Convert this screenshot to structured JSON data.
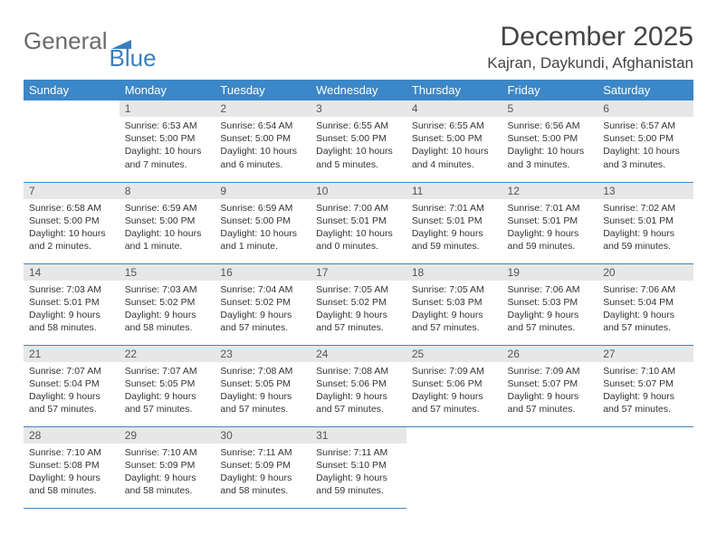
{
  "logo": {
    "text1": "General",
    "text2": "Blue"
  },
  "title": "December 2025",
  "location": "Kajran, Daykundi, Afghanistan",
  "colors": {
    "header_bg": "#3b87c8",
    "header_text": "#ffffff",
    "daynum_bg": "#e7e7e7",
    "row_border": "#3b87c8",
    "logo_gray": "#6b6b6b",
    "logo_blue": "#3b7fbf"
  },
  "weekdays": [
    "Sunday",
    "Monday",
    "Tuesday",
    "Wednesday",
    "Thursday",
    "Friday",
    "Saturday"
  ],
  "weeks": [
    [
      {
        "blank": true
      },
      {
        "n": "1",
        "sunrise": "6:53 AM",
        "sunset": "5:00 PM",
        "daylight": "10 hours and 7 minutes."
      },
      {
        "n": "2",
        "sunrise": "6:54 AM",
        "sunset": "5:00 PM",
        "daylight": "10 hours and 6 minutes."
      },
      {
        "n": "3",
        "sunrise": "6:55 AM",
        "sunset": "5:00 PM",
        "daylight": "10 hours and 5 minutes."
      },
      {
        "n": "4",
        "sunrise": "6:55 AM",
        "sunset": "5:00 PM",
        "daylight": "10 hours and 4 minutes."
      },
      {
        "n": "5",
        "sunrise": "6:56 AM",
        "sunset": "5:00 PM",
        "daylight": "10 hours and 3 minutes."
      },
      {
        "n": "6",
        "sunrise": "6:57 AM",
        "sunset": "5:00 PM",
        "daylight": "10 hours and 3 minutes."
      }
    ],
    [
      {
        "n": "7",
        "sunrise": "6:58 AM",
        "sunset": "5:00 PM",
        "daylight": "10 hours and 2 minutes."
      },
      {
        "n": "8",
        "sunrise": "6:59 AM",
        "sunset": "5:00 PM",
        "daylight": "10 hours and 1 minute."
      },
      {
        "n": "9",
        "sunrise": "6:59 AM",
        "sunset": "5:00 PM",
        "daylight": "10 hours and 1 minute."
      },
      {
        "n": "10",
        "sunrise": "7:00 AM",
        "sunset": "5:01 PM",
        "daylight": "10 hours and 0 minutes."
      },
      {
        "n": "11",
        "sunrise": "7:01 AM",
        "sunset": "5:01 PM",
        "daylight": "9 hours and 59 minutes."
      },
      {
        "n": "12",
        "sunrise": "7:01 AM",
        "sunset": "5:01 PM",
        "daylight": "9 hours and 59 minutes."
      },
      {
        "n": "13",
        "sunrise": "7:02 AM",
        "sunset": "5:01 PM",
        "daylight": "9 hours and 59 minutes."
      }
    ],
    [
      {
        "n": "14",
        "sunrise": "7:03 AM",
        "sunset": "5:01 PM",
        "daylight": "9 hours and 58 minutes."
      },
      {
        "n": "15",
        "sunrise": "7:03 AM",
        "sunset": "5:02 PM",
        "daylight": "9 hours and 58 minutes."
      },
      {
        "n": "16",
        "sunrise": "7:04 AM",
        "sunset": "5:02 PM",
        "daylight": "9 hours and 57 minutes."
      },
      {
        "n": "17",
        "sunrise": "7:05 AM",
        "sunset": "5:02 PM",
        "daylight": "9 hours and 57 minutes."
      },
      {
        "n": "18",
        "sunrise": "7:05 AM",
        "sunset": "5:03 PM",
        "daylight": "9 hours and 57 minutes."
      },
      {
        "n": "19",
        "sunrise": "7:06 AM",
        "sunset": "5:03 PM",
        "daylight": "9 hours and 57 minutes."
      },
      {
        "n": "20",
        "sunrise": "7:06 AM",
        "sunset": "5:04 PM",
        "daylight": "9 hours and 57 minutes."
      }
    ],
    [
      {
        "n": "21",
        "sunrise": "7:07 AM",
        "sunset": "5:04 PM",
        "daylight": "9 hours and 57 minutes."
      },
      {
        "n": "22",
        "sunrise": "7:07 AM",
        "sunset": "5:05 PM",
        "daylight": "9 hours and 57 minutes."
      },
      {
        "n": "23",
        "sunrise": "7:08 AM",
        "sunset": "5:05 PM",
        "daylight": "9 hours and 57 minutes."
      },
      {
        "n": "24",
        "sunrise": "7:08 AM",
        "sunset": "5:06 PM",
        "daylight": "9 hours and 57 minutes."
      },
      {
        "n": "25",
        "sunrise": "7:09 AM",
        "sunset": "5:06 PM",
        "daylight": "9 hours and 57 minutes."
      },
      {
        "n": "26",
        "sunrise": "7:09 AM",
        "sunset": "5:07 PM",
        "daylight": "9 hours and 57 minutes."
      },
      {
        "n": "27",
        "sunrise": "7:10 AM",
        "sunset": "5:07 PM",
        "daylight": "9 hours and 57 minutes."
      }
    ],
    [
      {
        "n": "28",
        "sunrise": "7:10 AM",
        "sunset": "5:08 PM",
        "daylight": "9 hours and 58 minutes."
      },
      {
        "n": "29",
        "sunrise": "7:10 AM",
        "sunset": "5:09 PM",
        "daylight": "9 hours and 58 minutes."
      },
      {
        "n": "30",
        "sunrise": "7:11 AM",
        "sunset": "5:09 PM",
        "daylight": "9 hours and 58 minutes."
      },
      {
        "n": "31",
        "sunrise": "7:11 AM",
        "sunset": "5:10 PM",
        "daylight": "9 hours and 59 minutes."
      },
      {
        "blank": true
      },
      {
        "blank": true
      },
      {
        "blank": true
      }
    ]
  ],
  "labels": {
    "sunrise": "Sunrise:",
    "sunset": "Sunset:",
    "daylight": "Daylight:"
  }
}
